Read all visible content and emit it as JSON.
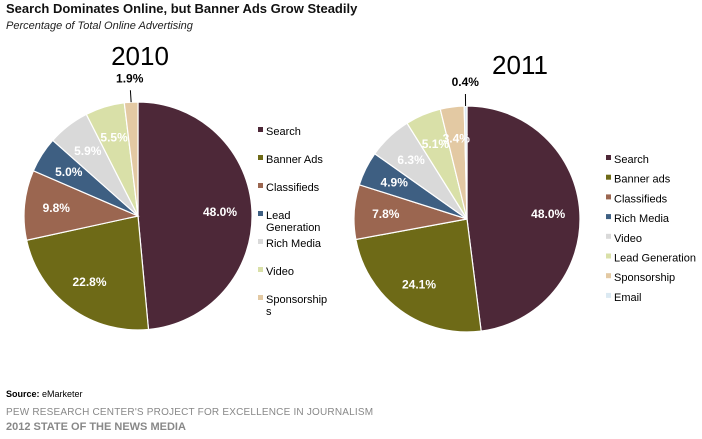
{
  "header": {
    "title": "Search Dominates Online, but Banner Ads Grow Steadily",
    "subtitle": "Percentage of Total Online Advertising"
  },
  "footer": {
    "source_label": "Source:",
    "source_value": "eMarketer",
    "org": "PEW RESEARCH CENTER'S PROJECT FOR EXCELLENCE IN JOURNALISM",
    "report": "2012 STATE OF THE NEWS MEDIA"
  },
  "chart_data": [
    {
      "type": "pie",
      "title": "2010",
      "slices": [
        {
          "name": "Search",
          "value": 48.0,
          "label": "48.0%",
          "color": "#4d2838",
          "text_color": "#ffffff"
        },
        {
          "name": "Banner Ads",
          "value": 22.8,
          "label": "22.8%",
          "color": "#6e6a17",
          "text_color": "#ffffff"
        },
        {
          "name": "Classifieds",
          "value": 9.8,
          "label": "9.8%",
          "color": "#9b6650",
          "text_color": "#ffffff"
        },
        {
          "name": "Lead Generation",
          "legend_lines": [
            "Lead",
            "Generation"
          ],
          "value": 5.0,
          "label": "5.0%",
          "color": "#3e5f82",
          "text_color": "#ffffff"
        },
        {
          "name": "Rich Media",
          "value": 5.9,
          "label": "5.9%",
          "color": "#d9d9d9",
          "text_color": "#ffffff"
        },
        {
          "name": "Video",
          "value": 5.5,
          "label": "5.5%",
          "color": "#d9e0a8",
          "text_color": "#ffffff"
        },
        {
          "name": "Sponsorships",
          "legend_lines": [
            "Sponsorship",
            "s"
          ],
          "value": 1.9,
          "label": "1.9%",
          "color": "#e3c9a3",
          "text_color": "#000000"
        }
      ]
    },
    {
      "type": "pie",
      "title": "2011",
      "slices": [
        {
          "name": "Search",
          "value": 48.0,
          "label": "48.0%",
          "color": "#4d2838",
          "text_color": "#ffffff"
        },
        {
          "name": "Banner ads",
          "value": 24.1,
          "label": "24.1%",
          "color": "#6e6a17",
          "text_color": "#ffffff"
        },
        {
          "name": "Classifieds",
          "value": 7.8,
          "label": "7.8%",
          "color": "#9b6650",
          "text_color": "#ffffff"
        },
        {
          "name": "Rich Media",
          "value": 4.9,
          "label": "4.9%",
          "color": "#3e5f82",
          "text_color": "#ffffff"
        },
        {
          "name": "Video",
          "value": 6.3,
          "label": "6.3%",
          "color": "#d9d9d9",
          "text_color": "#ffffff"
        },
        {
          "name": "Lead Generation",
          "value": 5.1,
          "label": "5.1%",
          "color": "#d9e0a8",
          "text_color": "#ffffff"
        },
        {
          "name": "Sponsorship",
          "value": 3.4,
          "label": "3.4%",
          "color": "#e3c9a3",
          "text_color": "#ffffff"
        },
        {
          "name": "Email",
          "value": 0.4,
          "label": "0.4%",
          "color": "#dbe9f2",
          "text_color": "#000000"
        }
      ]
    }
  ]
}
